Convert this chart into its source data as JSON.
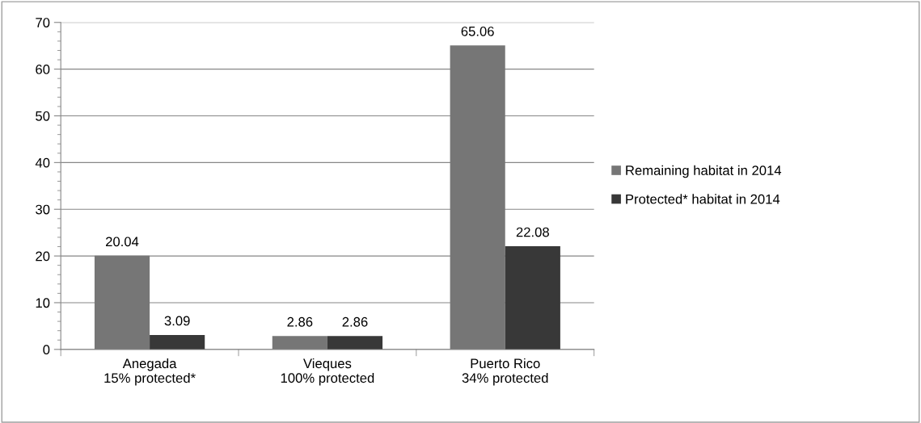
{
  "chart_data": {
    "type": "bar",
    "categories": [
      "Anegada\n15% protected*",
      "Vieques\n100% protected",
      "Puerto Rico\n34% protected"
    ],
    "series": [
      {
        "name": "Remaining habitat in 2014",
        "color": "#767676",
        "values": [
          20.04,
          2.86,
          65.06
        ]
      },
      {
        "name": "Protected* habitat in 2014",
        "color": "#383838",
        "values": [
          3.09,
          2.86,
          22.08
        ]
      }
    ],
    "ylim": [
      0,
      70
    ],
    "yticks": [
      0,
      10,
      20,
      30,
      40,
      50,
      60,
      70
    ],
    "grid": "y",
    "legend": "right",
    "data_labels": true
  }
}
